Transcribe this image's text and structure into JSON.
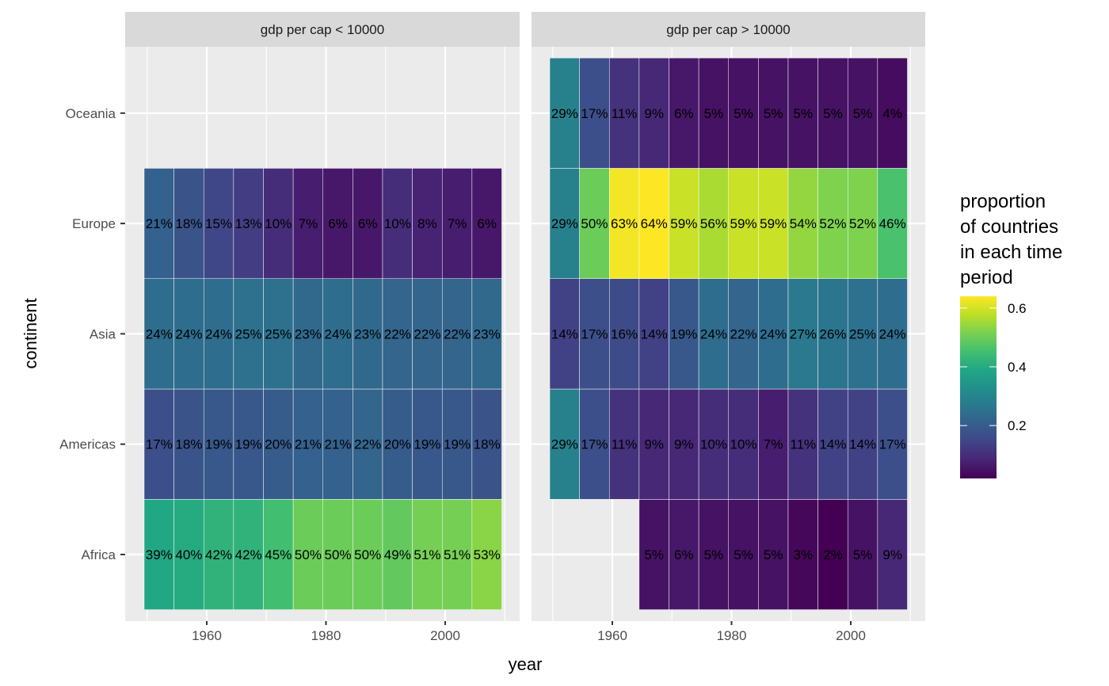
{
  "chart_data": {
    "type": "heatmap",
    "title": "",
    "xlabel": "year",
    "ylabel": "continent",
    "facets": [
      "gdp per cap < 10000",
      "gdp per cap > 10000"
    ],
    "x": [
      1952,
      1957,
      1962,
      1967,
      1972,
      1977,
      1982,
      1987,
      1992,
      1997,
      2002,
      2007
    ],
    "x_ticks": [
      1960,
      1980,
      2000
    ],
    "x_tick_labels": [
      "1960",
      "1980",
      "2000"
    ],
    "xlim": [
      1948,
      2011
    ],
    "categories": [
      "Africa",
      "Americas",
      "Asia",
      "Europe",
      "Oceania"
    ],
    "tile_width_years": 5,
    "grid": true,
    "series": [
      {
        "facet": "gdp per cap < 10000",
        "rows": {
          "Oceania": [
            null,
            null,
            null,
            null,
            null,
            null,
            null,
            null,
            null,
            null,
            null,
            null
          ],
          "Europe": [
            0.21,
            0.18,
            0.15,
            0.13,
            0.1,
            0.07,
            0.06,
            0.06,
            0.1,
            0.08,
            0.07,
            0.06
          ],
          "Asia": [
            0.24,
            0.24,
            0.24,
            0.25,
            0.25,
            0.23,
            0.24,
            0.23,
            0.22,
            0.22,
            0.22,
            0.23
          ],
          "Americas": [
            0.17,
            0.18,
            0.19,
            0.19,
            0.2,
            0.21,
            0.21,
            0.22,
            0.2,
            0.19,
            0.19,
            0.18
          ],
          "Africa": [
            0.39,
            0.4,
            0.42,
            0.42,
            0.45,
            0.5,
            0.5,
            0.5,
            0.49,
            0.51,
            0.51,
            0.53
          ]
        },
        "labels": {
          "Oceania": [
            null,
            null,
            null,
            null,
            null,
            null,
            null,
            null,
            null,
            null,
            null,
            null
          ],
          "Europe": [
            "21%",
            "18%",
            "15%",
            "13%",
            "10%",
            "7%",
            "6%",
            "6%",
            "10%",
            "8%",
            "7%",
            "6%"
          ],
          "Asia": [
            "24%",
            "24%",
            "24%",
            "25%",
            "25%",
            "23%",
            "24%",
            "23%",
            "22%",
            "22%",
            "22%",
            "23%"
          ],
          "Americas": [
            "17%",
            "18%",
            "19%",
            "19%",
            "20%",
            "21%",
            "21%",
            "22%",
            "20%",
            "19%",
            "19%",
            "18%"
          ],
          "Africa": [
            "39%",
            "40%",
            "42%",
            "42%",
            "45%",
            "50%",
            "50%",
            "50%",
            "49%",
            "51%",
            "51%",
            "53%"
          ]
        }
      },
      {
        "facet": "gdp per cap > 10000",
        "rows": {
          "Oceania": [
            0.29,
            0.17,
            0.11,
            0.09,
            0.06,
            0.05,
            0.05,
            0.05,
            0.05,
            0.05,
            0.05,
            0.04
          ],
          "Europe": [
            0.29,
            0.5,
            0.63,
            0.64,
            0.59,
            0.56,
            0.59,
            0.59,
            0.54,
            0.52,
            0.52,
            0.46
          ],
          "Asia": [
            0.14,
            0.17,
            0.16,
            0.14,
            0.19,
            0.24,
            0.22,
            0.24,
            0.27,
            0.26,
            0.25,
            0.24
          ],
          "Americas": [
            0.29,
            0.17,
            0.11,
            0.09,
            0.09,
            0.1,
            0.1,
            0.07,
            0.11,
            0.14,
            0.14,
            0.17
          ],
          "Africa": [
            null,
            null,
            null,
            0.05,
            0.06,
            0.05,
            0.05,
            0.05,
            0.03,
            0.02,
            0.05,
            0.09
          ]
        },
        "labels": {
          "Oceania": [
            "29%",
            "17%",
            "11%",
            "9%",
            "6%",
            "5%",
            "5%",
            "5%",
            "5%",
            "5%",
            "5%",
            "4%"
          ],
          "Europe": [
            "29%",
            "50%",
            "63%",
            "64%",
            "59%",
            "56%",
            "59%",
            "59%",
            "54%",
            "52%",
            "52%",
            "46%"
          ],
          "Asia": [
            "14%",
            "17%",
            "16%",
            "14%",
            "19%",
            "24%",
            "22%",
            "24%",
            "27%",
            "26%",
            "25%",
            "24%"
          ],
          "Americas": [
            "29%",
            "17%",
            "11%",
            "9%",
            "9%",
            "10%",
            "10%",
            "7%",
            "11%",
            "14%",
            "14%",
            "17%"
          ],
          "Africa": [
            null,
            null,
            null,
            "5%",
            "6%",
            "5%",
            "5%",
            "5%",
            "3%",
            "2%",
            "5%",
            "9%"
          ]
        }
      }
    ],
    "legend": {
      "title_lines": [
        "proportion",
        "of countries",
        "in each time",
        "period"
      ],
      "type": "colorbar",
      "palette": "viridis",
      "range": [
        0.02,
        0.64
      ],
      "ticks": [
        0.2,
        0.4,
        0.6
      ],
      "tick_labels": [
        "0.2",
        "0.4",
        "0.6"
      ],
      "placement": "right"
    },
    "colors": {
      "panel_background": "#ebebeb",
      "strip_background": "#d9d9d9",
      "grid": "#ffffff",
      "tile_border": "#ffffff"
    }
  }
}
